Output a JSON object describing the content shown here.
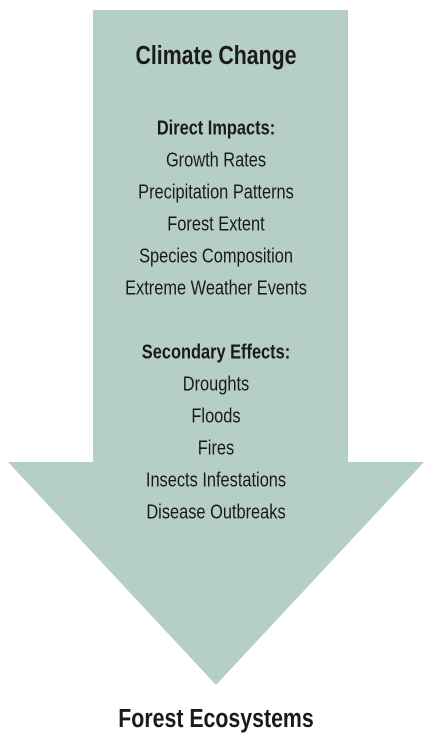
{
  "title": "Climate Change",
  "sections": [
    {
      "heading": "Direct Impacts:",
      "items": [
        "Growth Rates",
        "Precipitation Patterns",
        "Forest Extent",
        "Species Composition",
        "Extreme Weather Events"
      ]
    },
    {
      "heading": "Secondary Effects:",
      "items": [
        "Droughts",
        "Floods",
        "Fires",
        "Insects Infestations",
        "Disease Outbreaks"
      ]
    }
  ],
  "footer": "Forest Ecosystems"
}
